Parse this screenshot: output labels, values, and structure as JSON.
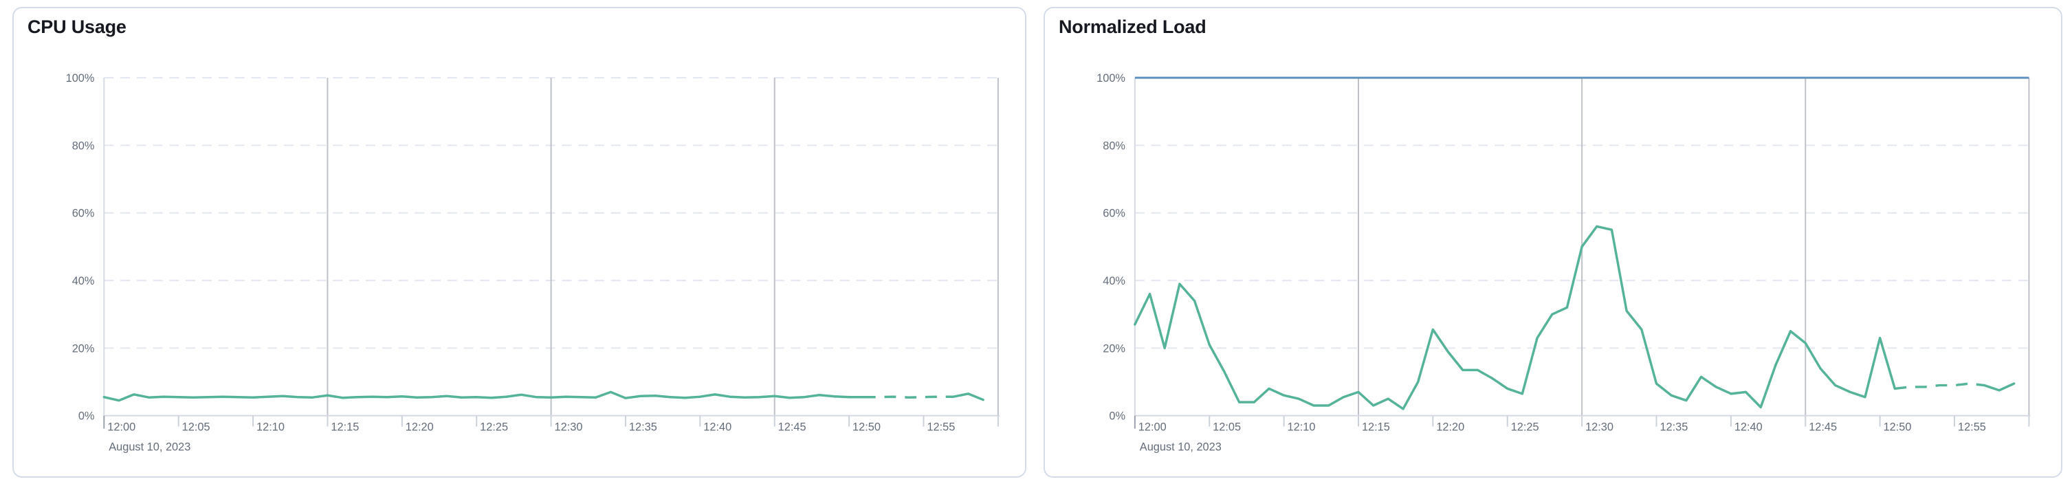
{
  "page": {
    "background": "#ffffff"
  },
  "chart_data": [
    {
      "type": "line",
      "title": "CPU Usage",
      "x_date_label": "August 10, 2023",
      "x_ticks": [
        "12:00",
        "12:05",
        "12:10",
        "12:15",
        "12:20",
        "12:25",
        "12:30",
        "12:35",
        "12:40",
        "12:45",
        "12:50",
        "12:55"
      ],
      "x_minutes_per_tick": 5,
      "x_range_minutes": [
        0,
        60
      ],
      "y_ticks": [
        "0%",
        "20%",
        "40%",
        "60%",
        "80%",
        "100%"
      ],
      "ylim": [
        0,
        100
      ],
      "grid": {
        "h_dashed_percents": [
          20,
          40,
          60,
          80,
          100
        ],
        "v_solid_minutes": [
          15,
          30,
          45,
          60
        ],
        "baseline_percent": 0
      },
      "legend": "none",
      "series": [
        {
          "name": "cpu-usage",
          "color": "#54b399",
          "x_minutes": [
            0,
            1,
            2,
            3,
            4,
            5,
            6,
            7,
            8,
            9,
            10,
            11,
            12,
            13,
            14,
            15,
            16,
            17,
            18,
            19,
            20,
            21,
            22,
            23,
            24,
            25,
            26,
            27,
            28,
            29,
            30,
            31,
            32,
            33,
            34,
            35,
            36,
            37,
            38,
            39,
            40,
            41,
            42,
            43,
            44,
            45,
            46,
            47,
            48,
            49,
            50,
            51,
            52,
            53,
            54,
            55,
            56,
            57,
            58,
            59
          ],
          "values": [
            5.5,
            4.5,
            6.3,
            5.4,
            5.6,
            5.5,
            5.4,
            5.5,
            5.6,
            5.5,
            5.4,
            5.6,
            5.8,
            5.5,
            5.4,
            6.0,
            5.3,
            5.5,
            5.6,
            5.5,
            5.7,
            5.4,
            5.5,
            5.8,
            5.4,
            5.5,
            5.3,
            5.6,
            6.2,
            5.5,
            5.4,
            5.6,
            5.5,
            5.4,
            7.0,
            5.2,
            5.8,
            5.9,
            5.5,
            5.3,
            5.6,
            6.3,
            5.6,
            5.4,
            5.5,
            5.8,
            5.3,
            5.5,
            6.1,
            5.7,
            5.5,
            5.5,
            5.5,
            5.6,
            5.4,
            5.5,
            5.6,
            5.6,
            6.5,
            4.7
          ],
          "solid_to_index": 51,
          "dashed_to_index": 57
        }
      ]
    },
    {
      "type": "line",
      "title": "Normalized Load",
      "x_date_label": "August 10, 2023",
      "x_ticks": [
        "12:00",
        "12:05",
        "12:10",
        "12:15",
        "12:20",
        "12:25",
        "12:30",
        "12:35",
        "12:40",
        "12:45",
        "12:50",
        "12:55"
      ],
      "x_minutes_per_tick": 5,
      "x_range_minutes": [
        0,
        60
      ],
      "y_ticks": [
        "0%",
        "20%",
        "40%",
        "60%",
        "80%",
        "100%"
      ],
      "ylim": [
        0,
        100
      ],
      "grid": {
        "h_dashed_percents": [
          20,
          40,
          60,
          80,
          100
        ],
        "v_solid_minutes": [
          15,
          30,
          45,
          60
        ],
        "baseline_percent": 0
      },
      "legend": "none",
      "reference_line": {
        "value": 100,
        "color": "#6092c0"
      },
      "series": [
        {
          "name": "normalized-load",
          "color": "#54b399",
          "x_minutes": [
            0,
            1,
            2,
            3,
            4,
            5,
            6,
            7,
            8,
            9,
            10,
            11,
            12,
            13,
            14,
            15,
            16,
            17,
            18,
            19,
            20,
            21,
            22,
            23,
            24,
            25,
            26,
            27,
            28,
            29,
            30,
            31,
            32,
            33,
            34,
            35,
            36,
            37,
            38,
            39,
            40,
            41,
            42,
            43,
            44,
            45,
            46,
            47,
            48,
            49,
            50,
            51,
            52,
            53,
            54,
            55,
            56,
            57,
            58,
            59
          ],
          "values": [
            27,
            36,
            20,
            39,
            34,
            21,
            13,
            4,
            4,
            8,
            6,
            5,
            3,
            3,
            5.5,
            7,
            3,
            5,
            2,
            10,
            25.5,
            19,
            13.5,
            13.5,
            11,
            8,
            6.5,
            23,
            30,
            32,
            50,
            56,
            55,
            31,
            25.5,
            9.5,
            6,
            4.5,
            11.5,
            8.5,
            6.5,
            7,
            2.5,
            15,
            25,
            21.5,
            14,
            9,
            7,
            5.5,
            23,
            8,
            8.5,
            8.5,
            9,
            9,
            9.5,
            9,
            7.5,
            9.5
          ],
          "solid_to_index": 51,
          "dashed_to_index": 57
        }
      ]
    }
  ],
  "style": {
    "series_green": "#54b399",
    "reference_blue": "#6092c0",
    "grid_dashed_color": "#e2e6f0",
    "grid_vertical_color": "#bdc1c7",
    "axis_baseline_color": "#d5dae2",
    "axis_edge_color": "#d5dae2",
    "tick_mark_color": "#ccd2da",
    "first_tick_mark_color": "#9aa1ab",
    "tick_text_color": "#646d7a",
    "title_color": "#16191f",
    "card_border_color": "#d4dce9"
  }
}
